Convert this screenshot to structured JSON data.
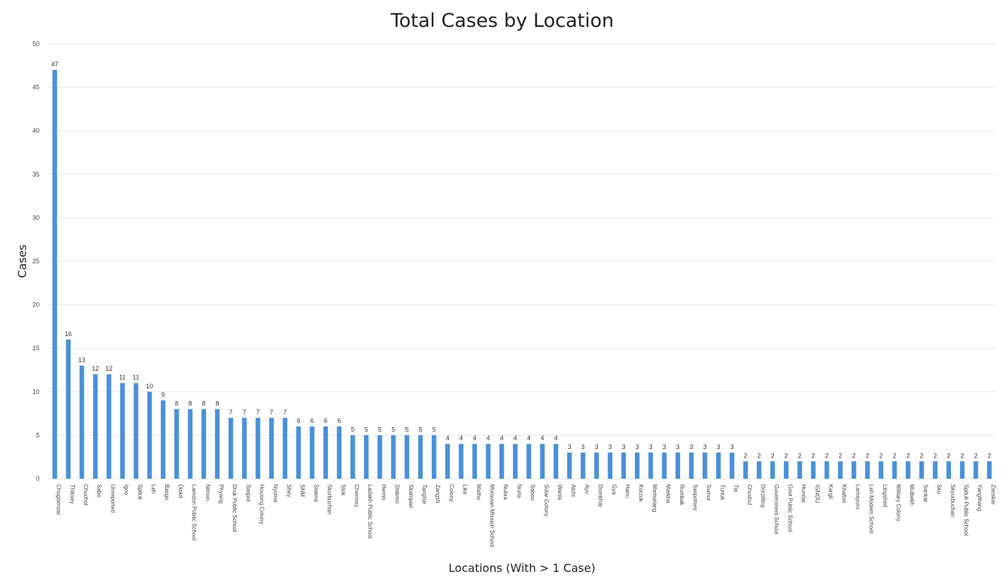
{
  "chart_data": {
    "type": "bar",
    "title": "Total Cases by Location",
    "xlabel": "Locations (With > 1 Case)",
    "ylabel": "Cases",
    "ylim": [
      0,
      50
    ],
    "yticks": [
      0,
      5,
      10,
      15,
      20,
      25,
      30,
      35,
      40,
      45,
      50
    ],
    "grid": true,
    "legend": "none",
    "bar_color": "#4a90d9",
    "gridline_color": "#e6e6e6",
    "categories": [
      "Choglamsar",
      "Thiksey",
      "Chuchot",
      "Sabo",
      "Unreported",
      "Igoo",
      "Spituk",
      "Leh",
      "Basgo",
      "Diskit",
      "Lamdon Public School",
      "Nimoo",
      "Phyang",
      "Druk Public School",
      "Saspol",
      "Housing Colony",
      "Nyoma",
      "Shey",
      "SNM",
      "Stakna",
      "Skurbuchan",
      "Stok",
      "Chemrey",
      "Ladakh Public School",
      "Hemis",
      "Stakmo",
      "Skampari",
      "Tangtse",
      "Zangsti",
      "Colony",
      "Likir",
      "Matho",
      "Moravian Mission School",
      "Nubra",
      "Nurla",
      "Saboo",
      "Solar Colony",
      "Wanla",
      "Alchi",
      "Ayu",
      "Domkhar",
      "Gya",
      "Hanu",
      "Korzok",
      "Martselang",
      "Markha",
      "Rumbak",
      "Saspotsey",
      "Sumur",
      "Turtuk",
      "Tia",
      "Chushul",
      "Dorzilling",
      "Government School",
      "Govt Public School",
      "Hundar",
      "IGNOU",
      "Kargil",
      "Khaltse",
      "Lamayuru",
      "Leh Modern School",
      "Lingshed",
      "Military Colony",
      "Mulbekh",
      "Sankar",
      "Sku",
      "Skyurbuchan",
      "Spituk Public School",
      "Yangthang",
      "Zanskar"
    ],
    "values": [
      47,
      16,
      13,
      12,
      12,
      11,
      11,
      10,
      9,
      8,
      8,
      8,
      8,
      7,
      7,
      7,
      7,
      7,
      6,
      6,
      6,
      6,
      5,
      5,
      5,
      5,
      5,
      5,
      5,
      4,
      4,
      4,
      4,
      4,
      4,
      4,
      4,
      4,
      3,
      3,
      3,
      3,
      3,
      3,
      3,
      3,
      3,
      3,
      3,
      3,
      3,
      2,
      2,
      2,
      2,
      2,
      2,
      2,
      2,
      2,
      2,
      2,
      2,
      2,
      2,
      2,
      2,
      2,
      2,
      2
    ],
    "data_labels": [
      "47",
      "16",
      "13",
      "12",
      "12",
      "11",
      "11",
      "10",
      "9",
      "8",
      "8",
      "8",
      "8",
      "7",
      "7",
      "7",
      "7",
      "7",
      "6",
      "6",
      "6",
      "6",
      "5",
      "5",
      "5",
      "5",
      "5",
      "5",
      "5",
      "4",
      "4",
      "4",
      "4",
      "4",
      "4",
      "4",
      "4",
      "4",
      "3",
      "3",
      "3",
      "3",
      "3",
      "3",
      "3",
      "3",
      "3",
      "3",
      "3",
      "3",
      "3",
      "2",
      "2",
      "2",
      "2",
      "2",
      "2",
      "2",
      "2",
      "2",
      "2",
      "2",
      "2",
      "2",
      "2",
      "2",
      "2",
      "2",
      "2",
      "2"
    ]
  }
}
